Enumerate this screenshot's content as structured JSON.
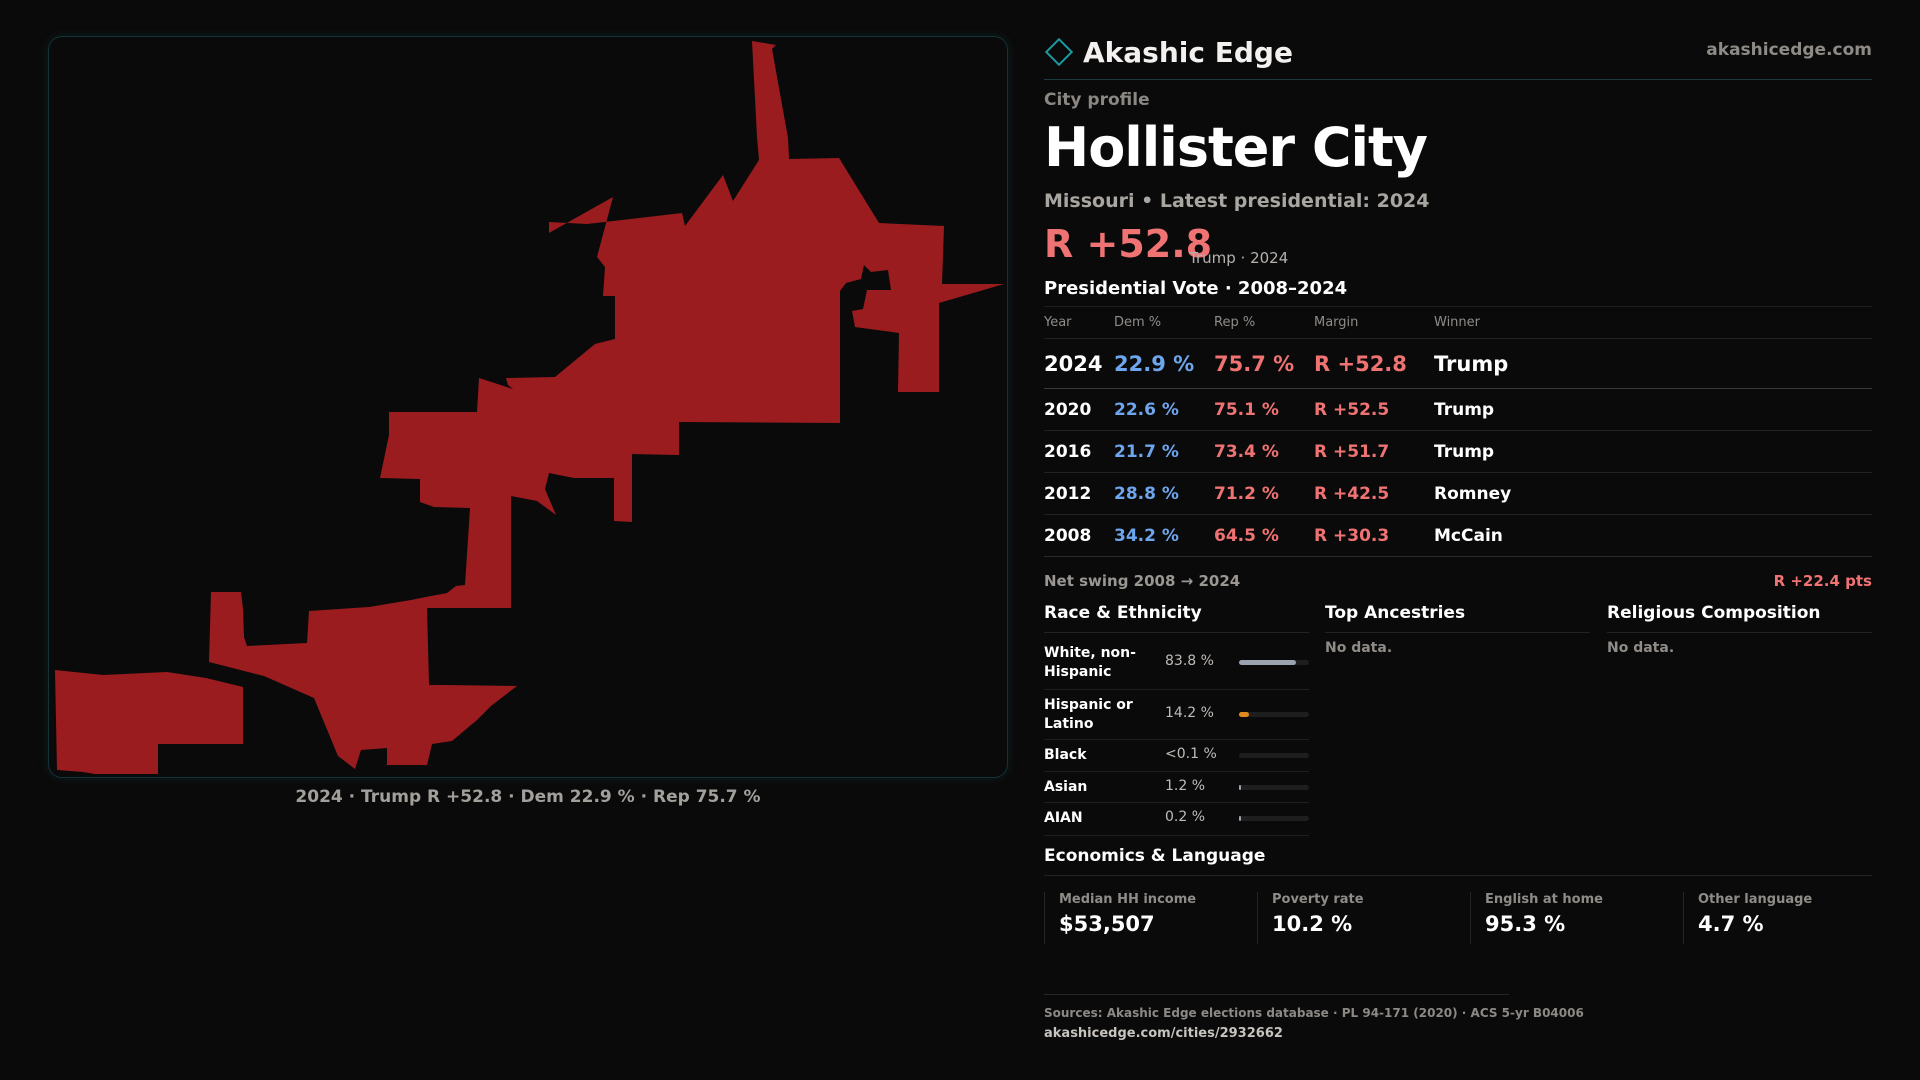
{
  "brand": {
    "name": "Akashic Edge",
    "site": "akashicedge.com"
  },
  "map": {
    "caption": "2024 · Trump R +52.8 · Dem 22.9 % · Rep 75.7 %",
    "fill_color": "#9b1c1f"
  },
  "profile": {
    "kicker": "City profile",
    "city": "Hollister City",
    "subline": "Missouri • Latest presidential: 2024",
    "margin": "R +52.8",
    "margin_note": "Trump · 2024"
  },
  "votes": {
    "title": "Presidential Vote · 2008–2024",
    "headers": [
      "Year",
      "Dem %",
      "Rep %",
      "Margin",
      "Winner"
    ],
    "rows": [
      {
        "year": "2024",
        "dem": "22.9 %",
        "rep": "75.7 %",
        "margin": "R +52.8",
        "winner": "Trump"
      },
      {
        "year": "2020",
        "dem": "22.6 %",
        "rep": "75.1 %",
        "margin": "R +52.5",
        "winner": "Trump"
      },
      {
        "year": "2016",
        "dem": "21.7 %",
        "rep": "73.4 %",
        "margin": "R +51.7",
        "winner": "Trump"
      },
      {
        "year": "2012",
        "dem": "28.8 %",
        "rep": "71.2 %",
        "margin": "R +42.5",
        "winner": "Romney"
      },
      {
        "year": "2008",
        "dem": "34.2 %",
        "rep": "64.5 %",
        "margin": "R +30.3",
        "winner": "McCain"
      }
    ],
    "swing_label": "Net swing 2008 → 2024",
    "swing_value": "R +22.4 pts"
  },
  "race": {
    "title": "Race & Ethnicity",
    "rows": [
      {
        "label": "White, non-Hispanic",
        "pct": "83.8 %",
        "share": 0.838,
        "color": "#9aa3b0"
      },
      {
        "label": "Hispanic or Latino",
        "pct": "14.2 %",
        "share": 0.142,
        "color": "#e08a1e"
      },
      {
        "label": "Black",
        "pct": "<0.1 %",
        "share": 0.0,
        "color": "#9aa3b0"
      },
      {
        "label": "Asian",
        "pct": "1.2 %",
        "share": 0.012,
        "color": "#9aa3b0"
      },
      {
        "label": "AIAN",
        "pct": "0.2 %",
        "share": 0.002,
        "color": "#9aa3b0"
      }
    ]
  },
  "ancestries": {
    "title": "Top Ancestries",
    "empty": "No data."
  },
  "religion": {
    "title": "Religious Composition",
    "empty": "No data."
  },
  "economics": {
    "title": "Economics & Language",
    "stats": [
      {
        "label": "Median HH income",
        "value": "$53,507"
      },
      {
        "label": "Poverty rate",
        "value": "10.2 %"
      },
      {
        "label": "English at home",
        "value": "95.3 %"
      },
      {
        "label": "Other language",
        "value": "4.7 %"
      }
    ]
  },
  "footer": {
    "sources": "Sources: Akashic Edge elections database · PL 94-171 (2020) · ACS 5-yr B04006",
    "url": "akashicedge.com/cities/2932662"
  }
}
